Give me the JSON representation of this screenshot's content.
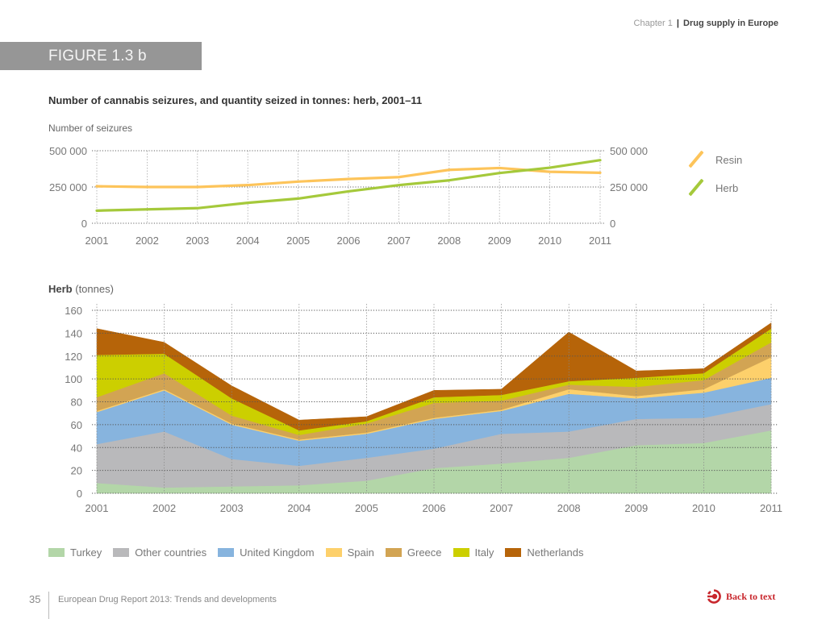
{
  "header": {
    "chapter_label": "Chapter 1",
    "separator": "|",
    "chapter_name": "Drug supply in Europe"
  },
  "figure_label": "FIGURE 1.3 b",
  "footer": {
    "page_number": "35",
    "report_title": "European Drug Report 2013: Trends and developments",
    "back_link": "Back to text",
    "back_icon": "back-arrow-circle-icon",
    "accent_color": "#c8262c"
  },
  "chart_data": [
    {
      "type": "line",
      "title": "Number of cannabis seizures, and quantity seized in tonnes: herb, 2001–11",
      "ylabel": "Number of seizures",
      "xlabel": "",
      "x": [
        "2001",
        "2002",
        "2003",
        "2004",
        "2005",
        "2006",
        "2007",
        "2008",
        "2009",
        "2010",
        "2011"
      ],
      "ylim": [
        0,
        500000
      ],
      "yticks": [
        0,
        250000,
        500000
      ],
      "ytick_labels": [
        "0",
        "250 000",
        "500 000"
      ],
      "grid": true,
      "secondary_axis_labels": [
        "0",
        "250 000",
        "500 000"
      ],
      "legend_position": "right",
      "series": [
        {
          "name": "Resin",
          "color": "#fdc45a",
          "values": [
            255000,
            250000,
            250000,
            263000,
            287000,
            305000,
            318000,
            368000,
            381000,
            355000,
            348000
          ]
        },
        {
          "name": "Herb",
          "color": "#a5c93b",
          "values": [
            87000,
            96000,
            104000,
            141000,
            170000,
            220000,
            263000,
            296000,
            346000,
            383000,
            435000
          ]
        }
      ]
    },
    {
      "type": "area",
      "stacked": true,
      "title": "Herb (tonnes)",
      "title_bold": "Herb",
      "title_rest": " (tonnes)",
      "xlabel": "",
      "ylabel": "tonnes",
      "x": [
        "2001",
        "2002",
        "2003",
        "2004",
        "2005",
        "2006",
        "2007",
        "2008",
        "2009",
        "2010",
        "2011"
      ],
      "ylim": [
        0,
        160
      ],
      "yticks": [
        0,
        20,
        40,
        60,
        80,
        100,
        120,
        140,
        160
      ],
      "grid": true,
      "legend_position": "bottom",
      "series": [
        {
          "name": "Turkey",
          "color": "#b3d6a8",
          "values": [
            9,
            5,
            6,
            7,
            11,
            22,
            26,
            31,
            42,
            44,
            55
          ]
        },
        {
          "name": "Other countries",
          "color": "#b9b9bb",
          "values": [
            34,
            49,
            24,
            17,
            20,
            17,
            26,
            23,
            23,
            22,
            23
          ]
        },
        {
          "name": "United Kingdom",
          "color": "#87b4de",
          "values": [
            28,
            36,
            30,
            22,
            21,
            26,
            20,
            33,
            18,
            22,
            23
          ]
        },
        {
          "name": "Spain",
          "color": "#fdd06b",
          "values": [
            1,
            1,
            1,
            1,
            1,
            1,
            1,
            4,
            2,
            3,
            18
          ]
        },
        {
          "name": "Greece",
          "color": "#d2a453",
          "values": [
            12,
            14,
            7,
            4,
            8,
            13,
            8,
            4,
            8,
            8,
            13
          ]
        },
        {
          "name": "Italy",
          "color": "#cccf00",
          "values": [
            37,
            17,
            15,
            4,
            2,
            5,
            5,
            3,
            8,
            6,
            12
          ]
        },
        {
          "name": "Netherlands",
          "color": "#b66409",
          "values": [
            23,
            10,
            11,
            9,
            4,
            6,
            5,
            43,
            6,
            4,
            5
          ]
        }
      ]
    }
  ]
}
